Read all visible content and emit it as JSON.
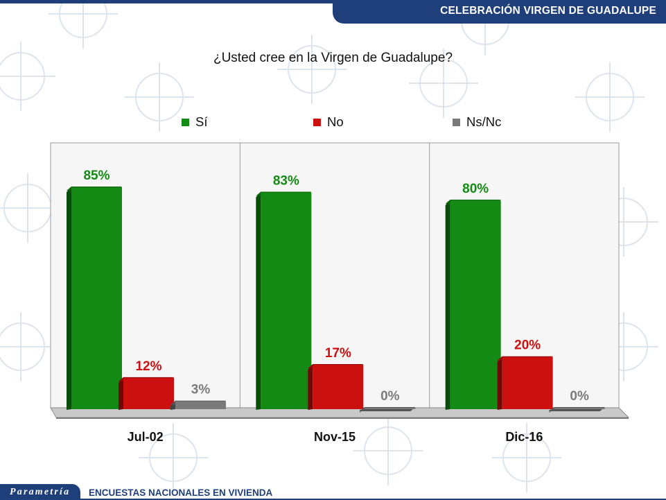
{
  "header": {
    "title": "CELEBRACIÓN VIRGEN DE GUADALUPE"
  },
  "footer": {
    "logo_text": "Parametría",
    "subtitle": "ENCUESTAS NACIONALES EN VIVIENDA"
  },
  "colors": {
    "navy": "#1f3f7a",
    "si": "#138a13",
    "no": "#cc0f0f",
    "nsnc": "#7a7a7a"
  },
  "chart_data": {
    "type": "bar",
    "title": "¿Usted cree en la Virgen de Guadalupe?",
    "categories": [
      "Jul-02",
      "Nov-15",
      "Dic-16"
    ],
    "series": [
      {
        "name": "Sí",
        "values": [
          85,
          83,
          80
        ],
        "labels": [
          "85%",
          "83%",
          "80%"
        ],
        "color": "#138a13"
      },
      {
        "name": "No",
        "values": [
          12,
          17,
          20
        ],
        "labels": [
          "12%",
          "17%",
          "20%"
        ],
        "color": "#cc0f0f"
      },
      {
        "name": "Ns/Nc",
        "values": [
          3,
          0,
          0
        ],
        "labels": [
          "3%",
          "0%",
          "0%"
        ],
        "color": "#7a7a7a"
      }
    ],
    "ylim": [
      0,
      100
    ],
    "grid": false,
    "legend": "top"
  }
}
